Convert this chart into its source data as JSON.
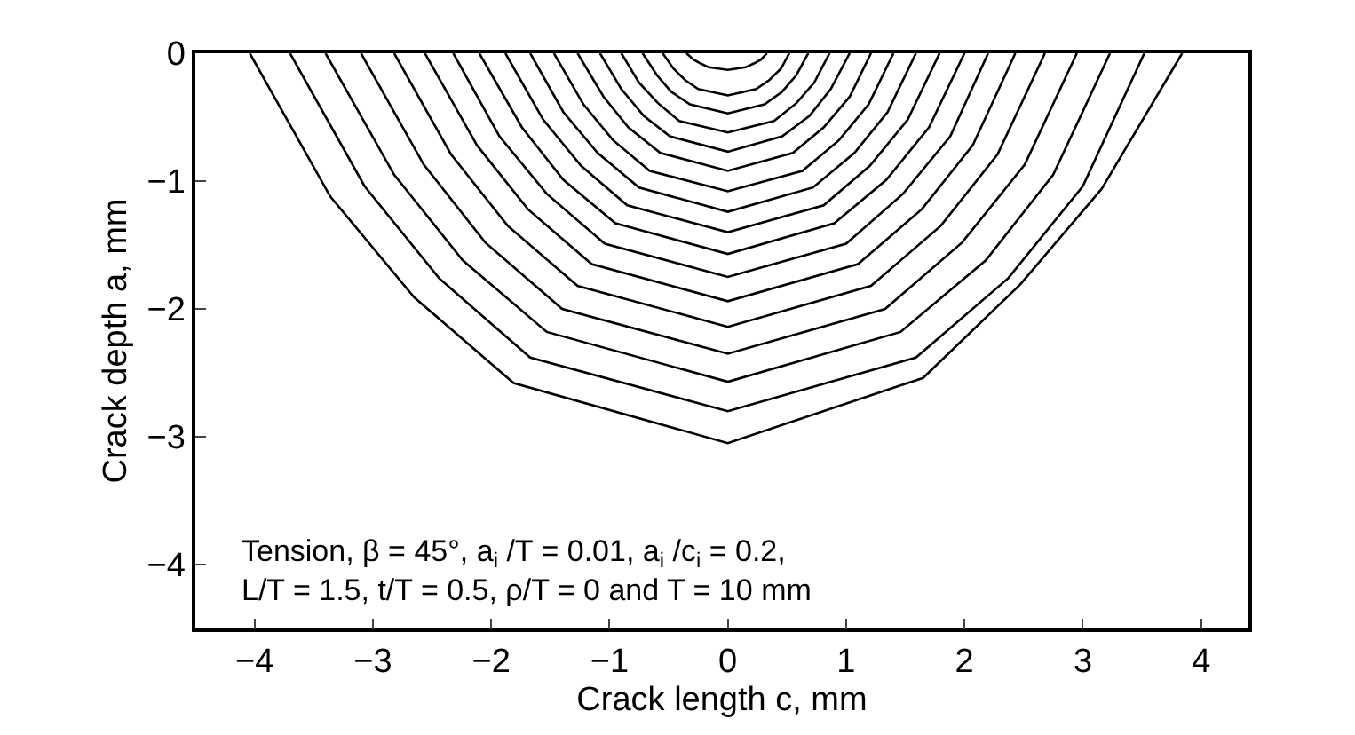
{
  "chart_data": {
    "type": "line",
    "xlabel": "Crack length c, mm",
    "ylabel": "Crack depth a, mm",
    "xlim": [
      -4.5,
      4.4
    ],
    "ylim": [
      -4.5,
      0
    ],
    "xticks": [
      -4,
      -3,
      -2,
      -1,
      0,
      1,
      2,
      3,
      4
    ],
    "yticks": [
      0,
      -1,
      -2,
      -3,
      -4
    ],
    "marker": "none",
    "line_style": "solid",
    "annotations": [
      "Tension, β = 45°, a$_{i}$ /T = 0.01, a$_{i}$ /c$_{i}$ = 0.2,\nL/T = 1.5, t/T = 0.5, ρ/T = 0 and T = 10 mm"
    ],
    "series": [
      {
        "color": "#000000",
        "x": [
          -4.04,
          -3.36,
          -2.65,
          -1.81,
          0,
          1.65,
          2.47,
          3.16,
          3.84
        ],
        "values": [
          0,
          -1.12,
          -1.91,
          -2.58,
          -3.05,
          -2.54,
          -1.81,
          -1.06,
          0
        ]
      },
      {
        "color": "#000000",
        "x": [
          -3.7,
          -3.07,
          -2.44,
          -1.67,
          0,
          1.59,
          2.37,
          3.0,
          3.52
        ],
        "values": [
          0,
          -1.04,
          -1.76,
          -2.38,
          -2.8,
          -2.38,
          -1.76,
          -1.04,
          0
        ]
      },
      {
        "color": "#000000",
        "x": [
          -3.4,
          -2.82,
          -2.24,
          -1.53,
          0,
          1.46,
          2.18,
          2.75,
          3.23
        ],
        "values": [
          0,
          -0.95,
          -1.62,
          -2.18,
          -2.57,
          -2.18,
          -1.62,
          -0.95,
          0
        ]
      },
      {
        "color": "#000000",
        "x": [
          -3.1,
          -2.57,
          -2.05,
          -1.4,
          0,
          1.33,
          1.98,
          2.51,
          2.95
        ],
        "values": [
          0,
          -0.87,
          -1.48,
          -2.0,
          -2.35,
          -2.0,
          -1.48,
          -0.87,
          0
        ]
      },
      {
        "color": "#000000",
        "x": [
          -2.82,
          -2.34,
          -1.86,
          -1.27,
          0,
          1.21,
          1.8,
          2.28,
          2.68
        ],
        "values": [
          0,
          -0.79,
          -1.35,
          -1.82,
          -2.14,
          -1.82,
          -1.35,
          -0.79,
          0
        ]
      },
      {
        "color": "#000000",
        "x": [
          -2.56,
          -2.12,
          -1.69,
          -1.15,
          0,
          1.1,
          1.64,
          2.07,
          2.43
        ],
        "values": [
          0,
          -0.72,
          -1.22,
          -1.65,
          -1.94,
          -1.65,
          -1.22,
          -0.72,
          0
        ]
      },
      {
        "color": "#000000",
        "x": [
          -2.32,
          -1.93,
          -1.53,
          -1.04,
          0,
          1.0,
          1.48,
          1.88,
          2.2
        ],
        "values": [
          0,
          -0.65,
          -1.1,
          -1.49,
          -1.75,
          -1.49,
          -1.1,
          -0.65,
          0
        ]
      },
      {
        "color": "#000000",
        "x": [
          -2.1,
          -1.74,
          -1.39,
          -0.95,
          0,
          0.9,
          1.34,
          1.7,
          2.0
        ],
        "values": [
          0,
          -0.58,
          -0.99,
          -1.33,
          -1.57,
          -1.33,
          -0.99,
          -0.58,
          0
        ]
      },
      {
        "color": "#000000",
        "x": [
          -1.88,
          -1.56,
          -1.24,
          -0.85,
          0,
          0.81,
          1.2,
          1.52,
          1.79
        ],
        "values": [
          0,
          -0.52,
          -0.88,
          -1.19,
          -1.4,
          -1.19,
          -0.88,
          -0.52,
          0
        ]
      },
      {
        "color": "#000000",
        "x": [
          -1.67,
          -1.39,
          -1.1,
          -0.75,
          0,
          0.72,
          1.07,
          1.35,
          1.59
        ],
        "values": [
          0,
          -0.46,
          -0.78,
          -1.05,
          -1.24,
          -1.05,
          -0.78,
          -0.46,
          0
        ]
      },
      {
        "color": "#000000",
        "x": [
          -1.47,
          -1.22,
          -0.97,
          -0.66,
          0,
          0.63,
          0.94,
          1.19,
          1.4
        ],
        "values": [
          0,
          -0.4,
          -0.68,
          -0.92,
          -1.08,
          -0.92,
          -0.68,
          -0.4,
          0
        ]
      },
      {
        "color": "#000000",
        "x": [
          -1.27,
          -1.05,
          -0.84,
          -0.57,
          0,
          0.55,
          0.81,
          1.03,
          1.21
        ],
        "values": [
          0,
          -0.34,
          -0.58,
          -0.78,
          -0.92,
          -0.78,
          -0.58,
          -0.34,
          0
        ]
      },
      {
        "color": "#000000",
        "x": [
          -1.08,
          -0.9,
          -0.71,
          -0.49,
          0,
          0.46,
          0.69,
          0.87,
          1.03
        ],
        "values": [
          0,
          -0.28,
          -0.49,
          -0.65,
          -0.77,
          -0.65,
          -0.49,
          -0.28,
          0
        ]
      },
      {
        "color": "#000000",
        "x": [
          -0.9,
          -0.75,
          -0.59,
          -0.41,
          0,
          0.39,
          0.58,
          0.73,
          0.86
        ],
        "values": [
          0,
          -0.23,
          -0.39,
          -0.53,
          -0.62,
          -0.53,
          -0.39,
          -0.23,
          0
        ]
      },
      {
        "color": "#000000",
        "x": [
          -0.72,
          -0.6,
          -0.48,
          -0.32,
          0,
          0.31,
          0.46,
          0.58,
          0.68
        ],
        "values": [
          0,
          -0.17,
          -0.3,
          -0.4,
          -0.47,
          -0.4,
          -0.3,
          -0.17,
          0
        ]
      },
      {
        "color": "#000000",
        "x": [
          -0.55,
          -0.46,
          -0.36,
          -0.25,
          0,
          0.24,
          0.35,
          0.45,
          0.52
        ],
        "values": [
          0,
          -0.12,
          -0.21,
          -0.28,
          -0.33,
          -0.28,
          -0.21,
          -0.12,
          0
        ]
      },
      {
        "color": "#000000",
        "x": [
          -0.35,
          -0.29,
          -0.23,
          -0.16,
          0,
          0.15,
          0.22,
          0.28,
          0.33
        ],
        "values": [
          0,
          -0.05,
          -0.08,
          -0.11,
          -0.13,
          -0.11,
          -0.08,
          -0.05,
          0
        ]
      }
    ]
  }
}
